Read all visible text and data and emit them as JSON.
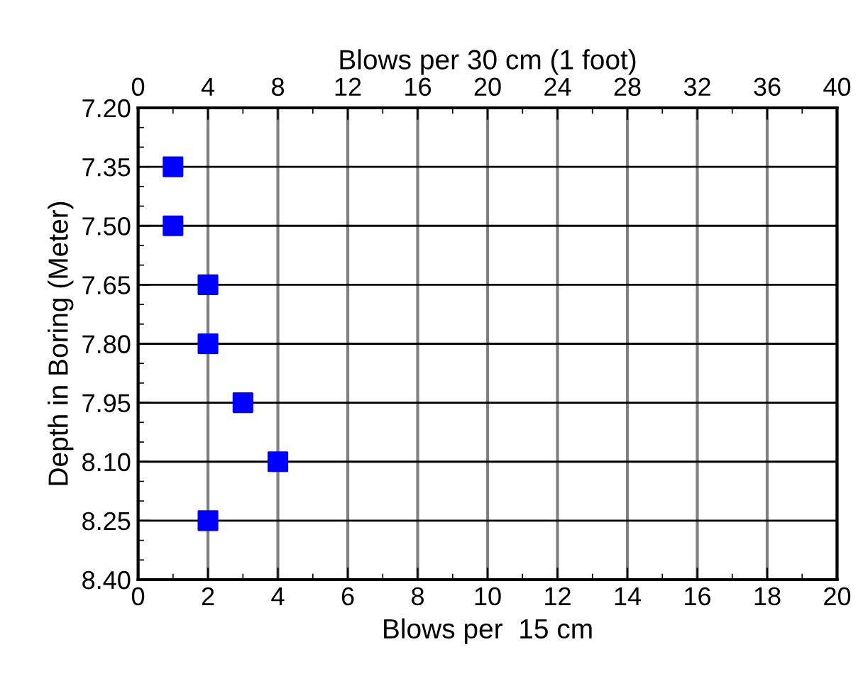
{
  "chart_data": {
    "type": "scatter",
    "xlabel": "Blows per  15 cm",
    "x2label": "Blows per 30 cm (1 foot)",
    "ylabel": "Depth in Boring (Meter)",
    "series": [
      {
        "color": "#0000ff",
        "x": [
          1,
          1,
          2,
          2,
          3,
          4,
          2
        ],
        "values": [
          7.35,
          7.5,
          7.65,
          7.8,
          7.95,
          8.1,
          8.25
        ]
      }
    ],
    "marker": "square",
    "grid": true,
    "xlim": [
      0,
      20
    ],
    "xticks": [
      0,
      2,
      4,
      6,
      8,
      10,
      12,
      14,
      16,
      18,
      20
    ],
    "x2lim": [
      0,
      40
    ],
    "x2ticks": [
      0,
      4,
      8,
      12,
      16,
      20,
      24,
      28,
      32,
      36,
      40
    ],
    "ylim": [
      8.4,
      7.2
    ],
    "yticks": [
      {
        "value": 7.2,
        "label": "7.20"
      },
      {
        "value": 7.35,
        "label": "7.35"
      },
      {
        "value": 7.5,
        "label": "7.50"
      },
      {
        "value": 7.65,
        "label": "7.65"
      },
      {
        "value": 7.8,
        "label": "7.80"
      },
      {
        "value": 7.95,
        "label": "7.95"
      },
      {
        "value": 8.1,
        "label": "8.10"
      },
      {
        "value": 8.25,
        "label": "8.25"
      },
      {
        "value": 8.4,
        "label": "8.40"
      }
    ]
  }
}
